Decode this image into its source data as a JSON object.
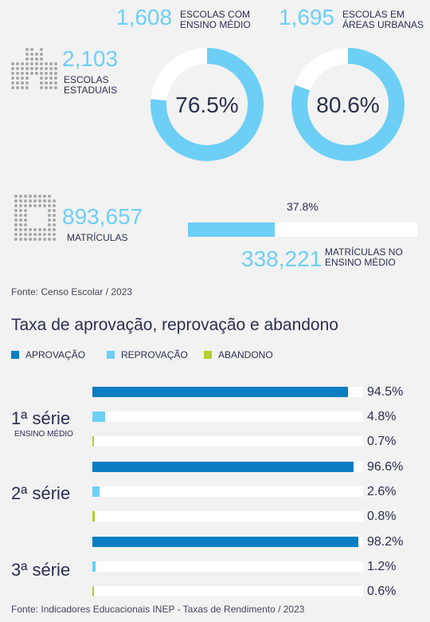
{
  "colors": {
    "light_blue": "#6dcff6",
    "dark_blue": "#0a7dc3",
    "green": "#b6cf2e",
    "white": "#ffffff",
    "navy_text": "#2b2f4f"
  },
  "stats": {
    "schools_high_school": {
      "value": "1,608",
      "label_line1": "ESCOLAS COM",
      "label_line2": "ENSINO MÉDIO",
      "percent_label": "76.5%",
      "percent": 76.5
    },
    "schools_urban": {
      "value": "1,695",
      "label_line1": "ESCOLAS EM",
      "label_line2": "ÁREAS URBANAS",
      "percent_label": "80.6%",
      "percent": 80.6
    },
    "state_schools": {
      "value": "2,103",
      "label_line1": "ESCOLAS",
      "label_line2": "ESTADUAIS",
      "icon": "building-icon"
    },
    "enrollments": {
      "value": "893,657",
      "label": "MATRÍCULAS",
      "icon": "document-icon"
    },
    "enrollments_high_school": {
      "value": "338,221",
      "label_line1": "MATRÍCULAS NO",
      "label_line2": "ENSINO MÉDIO",
      "percent_label": "37.8%",
      "percent": 37.8
    }
  },
  "source_top": "Fonte: Censo Escolar / 2023",
  "chart_data": {
    "type": "bar",
    "orientation": "horizontal",
    "title": "Taxa de aprovação, reprovação e abandono",
    "xlim": [
      0,
      100
    ],
    "legend_position": "top-left",
    "categories": [
      "1ª série",
      "2ª série",
      "3ª série"
    ],
    "category_sublabels": [
      "ENSINO MÉDIO",
      "",
      ""
    ],
    "series": [
      {
        "name": "APROVAÇÃO",
        "color": "#0a7dc3",
        "values": [
          94.5,
          96.6,
          98.2
        ],
        "labels": [
          "94.5%",
          "96.6%",
          "98.2%"
        ]
      },
      {
        "name": "REPROVAÇÃO",
        "color": "#6dcff6",
        "values": [
          4.8,
          2.6,
          1.2
        ],
        "labels": [
          "4.8%",
          "2.6%",
          "1.2%"
        ]
      },
      {
        "name": "ABANDONO",
        "color": "#b6cf2e",
        "values": [
          0.7,
          0.8,
          0.6
        ],
        "labels": [
          "0.7%",
          "0.8%",
          "0.6%"
        ]
      }
    ]
  },
  "source_bottom": "Fonte: Indicadores Educacionais INEP - Taxas de Rendimento / 2023"
}
